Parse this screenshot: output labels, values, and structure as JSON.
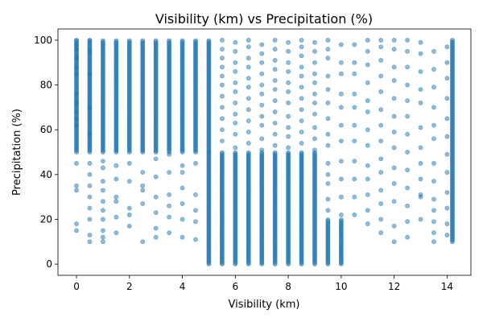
{
  "chart_data": {
    "type": "scatter",
    "title": "Visibility (km) vs Precipitation (%)",
    "xlabel": "Visibility (km)",
    "ylabel": "Precipitation (%)",
    "xlim": [
      -0.7,
      14.9
    ],
    "ylim": [
      -5,
      105
    ],
    "xticks": [
      0,
      2,
      4,
      6,
      8,
      10,
      12,
      14
    ],
    "yticks": [
      0,
      20,
      40,
      60,
      80,
      100
    ],
    "grid": false,
    "legend": "none",
    "marker_color": "#1f77b4",
    "marker_alpha": 0.5,
    "columns": [
      {
        "x": 0.0,
        "ranges": [
          [
            50,
            100
          ]
        ],
        "sparse": [
          15,
          18,
          33,
          35,
          45,
          62,
          65,
          68,
          72,
          76,
          85,
          88,
          92,
          96,
          98,
          100
        ]
      },
      {
        "x": 0.5,
        "ranges": [
          [
            50,
            100
          ]
        ],
        "sparse": [
          10,
          13,
          20,
          25,
          30,
          35,
          40,
          45,
          58,
          70,
          85,
          95,
          100
        ]
      },
      {
        "x": 1.0,
        "ranges": [
          [
            50,
            100
          ]
        ],
        "sparse": [
          10,
          12,
          15,
          20,
          24,
          28,
          33,
          37,
          43,
          46
        ]
      },
      {
        "x": 1.5,
        "ranges": [
          [
            50,
            100
          ]
        ],
        "sparse": [
          14,
          21,
          28,
          30,
          38,
          44
        ]
      },
      {
        "x": 2.0,
        "ranges": [
          [
            50,
            100
          ]
        ],
        "sparse": [
          17,
          22,
          25,
          37,
          45
        ]
      },
      {
        "x": 2.5,
        "ranges": [
          [
            50,
            100
          ]
        ],
        "sparse": [
          10,
          27,
          33,
          35,
          41
        ]
      },
      {
        "x": 3.0,
        "ranges": [
          [
            50,
            100
          ]
        ],
        "sparse": [
          12,
          16,
          23,
          30,
          39,
          47
        ]
      },
      {
        "x": 3.5,
        "ranges": [
          [
            50,
            100
          ]
        ],
        "sparse": [
          14,
          21,
          26,
          31,
          41,
          49
        ]
      },
      {
        "x": 4.0,
        "ranges": [
          [
            50,
            100
          ]
        ],
        "sparse": [
          12,
          20,
          27,
          34,
          41,
          44
        ]
      },
      {
        "x": 4.5,
        "ranges": [
          [
            50,
            100
          ]
        ],
        "sparse": [
          11,
          19,
          24,
          31,
          45
        ]
      },
      {
        "x": 5.0,
        "ranges": [
          [
            0,
            50
          ],
          [
            50,
            100
          ]
        ],
        "sparse": []
      },
      {
        "x": 5.5,
        "ranges": [
          [
            0,
            50
          ]
        ],
        "sparse": [
          55,
          60,
          65,
          70,
          75,
          80,
          84,
          88,
          92,
          96,
          100
        ]
      },
      {
        "x": 6.0,
        "ranges": [
          [
            0,
            50
          ]
        ],
        "sparse": [
          52,
          58,
          63,
          67,
          72,
          77,
          81,
          86,
          90,
          95,
          99
        ]
      },
      {
        "x": 6.5,
        "ranges": [
          [
            0,
            50
          ]
        ],
        "sparse": [
          54,
          59,
          64,
          69,
          74,
          79,
          83,
          88,
          92,
          97,
          100
        ]
      },
      {
        "x": 7.0,
        "ranges": [
          [
            0,
            50
          ]
        ],
        "sparse": [
          51,
          56,
          62,
          66,
          71,
          76,
          80,
          85,
          90,
          94,
          98
        ]
      },
      {
        "x": 7.5,
        "ranges": [
          [
            0,
            50
          ]
        ],
        "sparse": [
          53,
          58,
          63,
          68,
          73,
          78,
          82,
          87,
          91,
          96,
          100
        ]
      },
      {
        "x": 8.0,
        "ranges": [
          [
            0,
            50
          ]
        ],
        "sparse": [
          52,
          57,
          61,
          66,
          72,
          77,
          81,
          86,
          90,
          95,
          99
        ]
      },
      {
        "x": 8.5,
        "ranges": [
          [
            0,
            50
          ]
        ],
        "sparse": [
          54,
          59,
          64,
          69,
          74,
          79,
          84,
          88,
          93,
          97,
          100
        ]
      },
      {
        "x": 9.0,
        "ranges": [
          [
            0,
            50
          ]
        ],
        "sparse": [
          51,
          56,
          61,
          67,
          72,
          76,
          81,
          85,
          90,
          95,
          99
        ]
      },
      {
        "x": 9.5,
        "ranges": [
          [
            0,
            20
          ]
        ],
        "sparse": [
          24,
          29,
          36,
          40,
          45,
          53,
          58,
          65,
          72,
          78,
          84,
          92,
          96,
          100
        ]
      },
      {
        "x": 10.0,
        "ranges": [
          [
            0,
            20
          ]
        ],
        "sparse": [
          22,
          30,
          38,
          46,
          55,
          62,
          70,
          76,
          85,
          90,
          98
        ]
      },
      {
        "x": 10.5,
        "ranges": [],
        "sparse": [
          22,
          30,
          38,
          46,
          55,
          62,
          70,
          76,
          85,
          90,
          98
        ]
      },
      {
        "x": 11.0,
        "ranges": [],
        "sparse": [
          18,
          24,
          31,
          38,
          44,
          53,
          60,
          68,
          73,
          81,
          89,
          95,
          100
        ]
      },
      {
        "x": 11.5,
        "ranges": [],
        "sparse": [
          14,
          20,
          27,
          33,
          41,
          47,
          55,
          62,
          69,
          77,
          84,
          91,
          97,
          100
        ]
      },
      {
        "x": 12.0,
        "ranges": [],
        "sparse": [
          10,
          17,
          28,
          36,
          43,
          52,
          59,
          66,
          74,
          82,
          88,
          96,
          100
        ]
      },
      {
        "x": 12.5,
        "ranges": [],
        "sparse": [
          12,
          19,
          26,
          34,
          42,
          50,
          58,
          66,
          73,
          80,
          88,
          95,
          100
        ]
      },
      {
        "x": 13.0,
        "ranges": [],
        "sparse": [
          20,
          30,
          31,
          38,
          45,
          52,
          61,
          72,
          78,
          86,
          94,
          99
        ]
      },
      {
        "x": 13.5,
        "ranges": [],
        "sparse": [
          10,
          14,
          19,
          24,
          29,
          37,
          45,
          56,
          62,
          70,
          79,
          87,
          95
        ]
      },
      {
        "x": 14.0,
        "ranges": [],
        "sparse": [
          13,
          18,
          25,
          32,
          41,
          49,
          57,
          65,
          74,
          83,
          90,
          97
        ]
      },
      {
        "x": 14.2,
        "ranges": [
          [
            10,
            100
          ]
        ],
        "sparse": []
      }
    ]
  }
}
